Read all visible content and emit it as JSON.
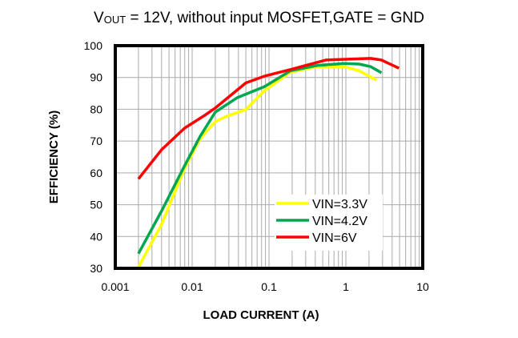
{
  "chart_data": {
    "type": "line",
    "title_main": "V",
    "title_sub": "OUT",
    "title_rest": " = 12V, without input MOSFET,GATE = GND",
    "xlabel": "LOAD CURRENT  (A)",
    "ylabel": "EFFICIENCY  (%)",
    "xscale": "log",
    "xlim": [
      0.001,
      10
    ],
    "ylim": [
      30,
      100
    ],
    "xticks": [
      "0.001",
      "0.01",
      "0.1",
      "1",
      "10"
    ],
    "xtick_values": [
      0.001,
      0.01,
      0.1,
      1,
      10
    ],
    "yticks": [
      "30",
      "40",
      "50",
      "60",
      "70",
      "80",
      "90",
      "100"
    ],
    "ytick_values": [
      30,
      40,
      50,
      60,
      70,
      80,
      90,
      100
    ],
    "grid": true,
    "legend": "bottom-right",
    "series": [
      {
        "name": "VIN=3.3V",
        "color": "#ffff00",
        "x": [
          0.002,
          0.004,
          0.008,
          0.0127,
          0.02,
          0.028,
          0.05,
          0.087,
          0.19,
          0.43,
          0.95,
          1.5,
          2.5
        ],
        "y": [
          30.4,
          43.8,
          61.5,
          70.7,
          76.1,
          77.8,
          79.9,
          85.8,
          91.7,
          93.4,
          93.4,
          92.1,
          89.2
        ]
      },
      {
        "name": "VIN=4.2V",
        "color": "#00a650",
        "x": [
          0.002,
          0.004,
          0.008,
          0.0127,
          0.02,
          0.039,
          0.087,
          0.19,
          0.43,
          0.95,
          1.5,
          2.1,
          2.9
        ],
        "y": [
          34.6,
          48.0,
          62.3,
          71.5,
          79.1,
          83.7,
          87.1,
          92.1,
          93.8,
          94.4,
          94.2,
          93.4,
          91.5
        ]
      },
      {
        "name": "VIN=6V",
        "color": "#ff0000",
        "x": [
          0.002,
          0.004,
          0.008,
          0.015,
          0.02,
          0.05,
          0.087,
          0.19,
          0.55,
          2.1,
          2.9,
          4.9
        ],
        "y": [
          58.1,
          67.3,
          74.1,
          78.3,
          80.4,
          88.3,
          90.4,
          92.5,
          95.5,
          96.0,
          95.5,
          92.9
        ]
      }
    ]
  }
}
